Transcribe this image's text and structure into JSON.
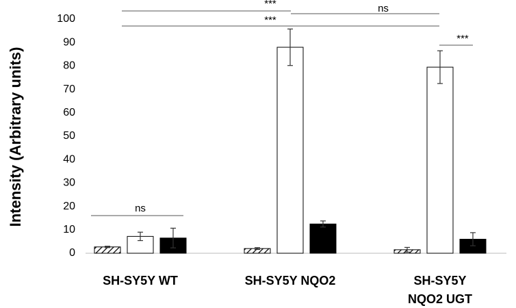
{
  "chart_data": {
    "type": "bar",
    "y_label": "Intensity (Arbitrary units)",
    "categories": [
      [
        "SH-SY5Y WT"
      ],
      [
        "SH-SY5Y NQO2"
      ],
      [
        "SH-SY5Y",
        "NQO2 UGT"
      ]
    ],
    "series": [
      {
        "pattern": "hatched",
        "color": "#ffffff",
        "values": [
          2.7,
          2.0,
          1.5
        ],
        "errors": [
          0.3,
          0.4,
          1.0
        ]
      },
      {
        "pattern": "solid",
        "color": "#ffffff",
        "values": [
          7.2,
          88.0,
          79.5
        ],
        "errors": [
          1.8,
          7.8,
          7.0
        ]
      },
      {
        "pattern": "solid",
        "color": "#000000",
        "values": [
          6.5,
          12.5,
          6.0
        ],
        "errors": [
          4.2,
          1.3,
          2.8
        ]
      }
    ],
    "ylim": [
      0,
      100
    ],
    "yticks": [
      0,
      10,
      20,
      30,
      40,
      50,
      60,
      70,
      80,
      90,
      100
    ],
    "grid": false,
    "annotations": [
      "***",
      "ns",
      "***",
      "***",
      "ns"
    ]
  }
}
